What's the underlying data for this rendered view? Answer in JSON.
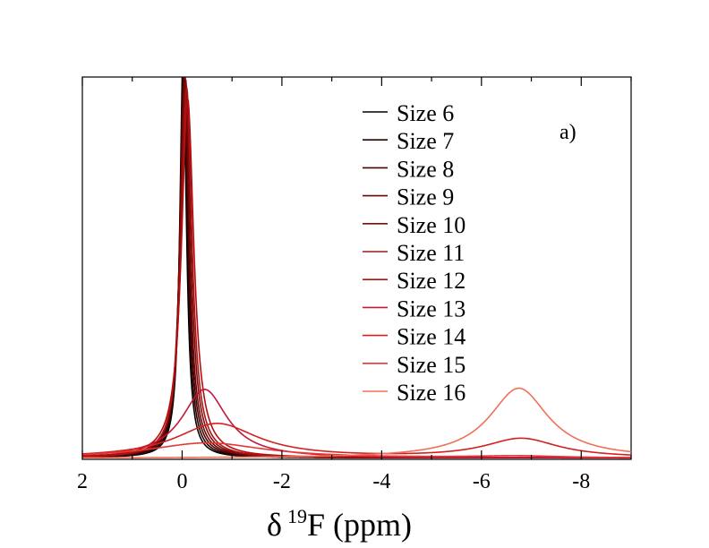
{
  "chart_data": {
    "type": "line",
    "annotation": "a)",
    "xlabel": "δ ¹⁹F (ppm)",
    "xlabel_parts": {
      "symbol": "δ",
      "superscript": "19",
      "rest": "F (ppm)"
    },
    "ylabel": "",
    "xlim": [
      2,
      -9
    ],
    "ylim": [
      0,
      1
    ],
    "x_ticks": [
      2,
      0,
      -2,
      -4,
      -6,
      -8
    ],
    "x_tick_labels": [
      "2",
      "0",
      "-2",
      "-4",
      "-6",
      "-8"
    ],
    "legend_position": "top-right",
    "series": [
      {
        "name": "Size 6",
        "color": "#000000",
        "peaks": [
          {
            "center": -0.02,
            "height": 1.05,
            "width": 0.08
          }
        ],
        "baseline": 0.004
      },
      {
        "name": "Size 7",
        "color": "#2a0000",
        "peaks": [
          {
            "center": -0.03,
            "height": 1.03,
            "width": 0.09
          }
        ],
        "baseline": 0.004
      },
      {
        "name": "Size 8",
        "color": "#4a0404",
        "peaks": [
          {
            "center": -0.04,
            "height": 1.02,
            "width": 0.1
          }
        ],
        "baseline": 0.004
      },
      {
        "name": "Size 9",
        "color": "#680606",
        "peaks": [
          {
            "center": -0.05,
            "height": 1.01,
            "width": 0.11
          }
        ],
        "baseline": 0.004
      },
      {
        "name": "Size 10",
        "color": "#850808",
        "peaks": [
          {
            "center": -0.07,
            "height": 0.99,
            "width": 0.12
          }
        ],
        "baseline": 0.004
      },
      {
        "name": "Size 11",
        "color": "#a01818",
        "peaks": [
          {
            "center": -0.09,
            "height": 0.97,
            "width": 0.13
          }
        ],
        "baseline": 0.004
      },
      {
        "name": "Size 12",
        "color": "#b80c0c",
        "peaks": [
          {
            "center": -0.11,
            "height": 0.94,
            "width": 0.15
          }
        ],
        "baseline": 0.004
      },
      {
        "name": "Size 13",
        "color": "#c2183a",
        "peaks": [
          {
            "center": -0.45,
            "height": 0.18,
            "width": 0.55
          }
        ],
        "baseline": 0.003
      },
      {
        "name": "Size 14",
        "color": "#d42020",
        "peaks": [
          {
            "center": -0.7,
            "height": 0.09,
            "width": 1.0
          },
          {
            "center": -6.8,
            "height": 0.05,
            "width": 0.9
          }
        ],
        "baseline": 0.003
      },
      {
        "name": "Size 15",
        "color": "#e43838",
        "peaks": [
          {
            "center": -0.5,
            "height": 0.04,
            "width": 1.4
          },
          {
            "center": -6.7,
            "height": 0.005,
            "width": 1.0
          }
        ],
        "baseline": 0.003
      },
      {
        "name": "Size 16",
        "color": "#f07058",
        "peaks": [
          {
            "center": -6.75,
            "height": 0.183,
            "width": 0.72
          }
        ],
        "baseline": 0.003
      }
    ]
  }
}
